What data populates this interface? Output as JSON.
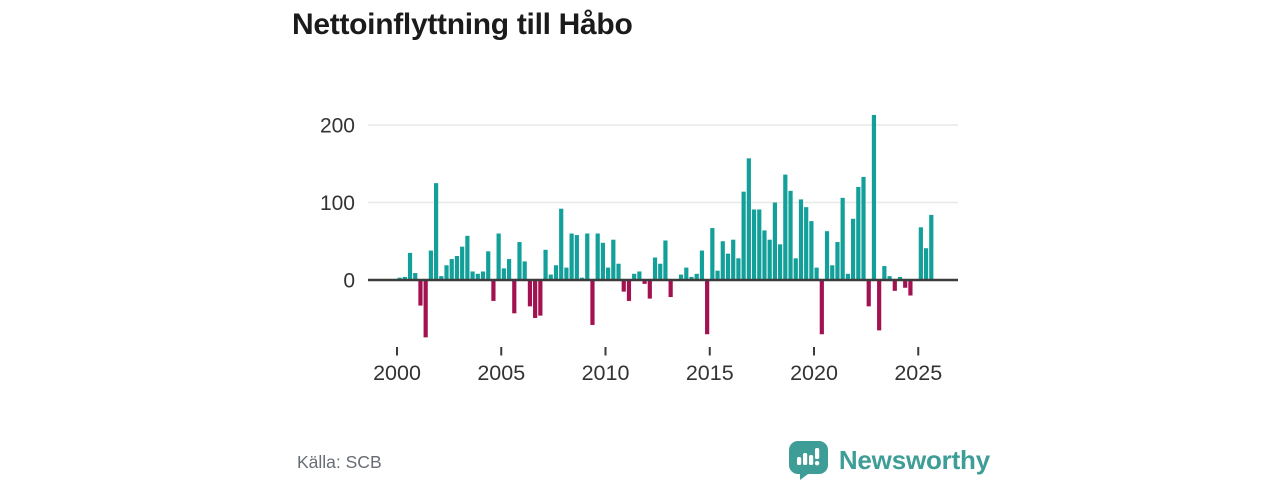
{
  "title": "Nettoinflyttning till Håbo",
  "footer": {
    "source": "Källa: SCB",
    "brand": "Newsworthy"
  },
  "colors": {
    "positive": "#14A09A",
    "negative": "#A31250",
    "brand_teal": "#3F9D97",
    "title_text": "#1b1b1b",
    "axis_text": "#333333",
    "gridline": "#e8e8e8",
    "zero_line": "#3c3c3c",
    "source_text": "#686d74"
  },
  "chart_data": {
    "type": "bar",
    "title": "Nettoinflyttning till Håbo",
    "xlabel": "",
    "ylabel": "",
    "y_ticks": [
      0,
      100,
      200
    ],
    "ylim": [
      -85,
      225
    ],
    "x_tick_labels": [
      "2000",
      "2005",
      "2010",
      "2015",
      "2020",
      "2025"
    ],
    "x_tick_years": [
      2000,
      2005,
      2010,
      2015,
      2020,
      2025
    ],
    "grid": true,
    "legend": false,
    "frequency": "quarterly",
    "series_name": "Nettoinflyttning",
    "categories": [
      "2000Q1",
      "2000Q2",
      "2000Q3",
      "2000Q4",
      "2001Q1",
      "2001Q2",
      "2001Q3",
      "2001Q4",
      "2002Q1",
      "2002Q2",
      "2002Q3",
      "2002Q4",
      "2003Q1",
      "2003Q2",
      "2003Q3",
      "2003Q4",
      "2004Q1",
      "2004Q2",
      "2004Q3",
      "2004Q4",
      "2005Q1",
      "2005Q2",
      "2005Q3",
      "2005Q4",
      "2006Q1",
      "2006Q2",
      "2006Q3",
      "2006Q4",
      "2007Q1",
      "2007Q2",
      "2007Q3",
      "2007Q4",
      "2008Q1",
      "2008Q2",
      "2008Q3",
      "2008Q4",
      "2009Q1",
      "2009Q2",
      "2009Q3",
      "2009Q4",
      "2010Q1",
      "2010Q2",
      "2010Q3",
      "2010Q4",
      "2011Q1",
      "2011Q2",
      "2011Q3",
      "2011Q4",
      "2012Q1",
      "2012Q2",
      "2012Q3",
      "2012Q4",
      "2013Q1",
      "2013Q2",
      "2013Q3",
      "2013Q4",
      "2014Q1",
      "2014Q2",
      "2014Q3",
      "2014Q4",
      "2015Q1",
      "2015Q2",
      "2015Q3",
      "2015Q4",
      "2016Q1",
      "2016Q2",
      "2016Q3",
      "2016Q4",
      "2017Q1",
      "2017Q2",
      "2017Q3",
      "2017Q4",
      "2018Q1",
      "2018Q2",
      "2018Q3",
      "2018Q4",
      "2019Q1",
      "2019Q2",
      "2019Q3",
      "2019Q4",
      "2020Q1",
      "2020Q2",
      "2020Q3",
      "2020Q4",
      "2021Q1",
      "2021Q2",
      "2021Q3",
      "2021Q4",
      "2022Q1",
      "2022Q2",
      "2022Q3",
      "2022Q4",
      "2023Q1",
      "2023Q2",
      "2023Q3",
      "2023Q4",
      "2024Q1",
      "2024Q2",
      "2024Q3",
      "2024Q4",
      "2025Q1",
      "2025Q2",
      "2025Q3"
    ],
    "values": [
      3,
      4,
      35,
      9,
      -33,
      -74,
      38,
      125,
      5,
      19,
      27,
      31,
      43,
      57,
      11,
      8,
      11,
      37,
      -27,
      60,
      15,
      27,
      -43,
      49,
      24,
      -34,
      -49,
      -46,
      39,
      7,
      19,
      92,
      16,
      60,
      58,
      3,
      60,
      -58,
      60,
      48,
      16,
      52,
      21,
      -15,
      -27,
      8,
      11,
      -5,
      -24,
      29,
      21,
      51,
      -22,
      0,
      7,
      16,
      4,
      8,
      38,
      -70,
      67,
      12,
      50,
      34,
      52,
      28,
      114,
      157,
      91,
      91,
      64,
      52,
      100,
      46,
      136,
      115,
      28,
      104,
      94,
      76,
      16,
      -70,
      63,
      19,
      49,
      106,
      8,
      79,
      120,
      133,
      -34,
      213,
      -65,
      18,
      5,
      -14,
      4,
      -10,
      -20,
      0,
      68,
      41,
      84
    ]
  }
}
